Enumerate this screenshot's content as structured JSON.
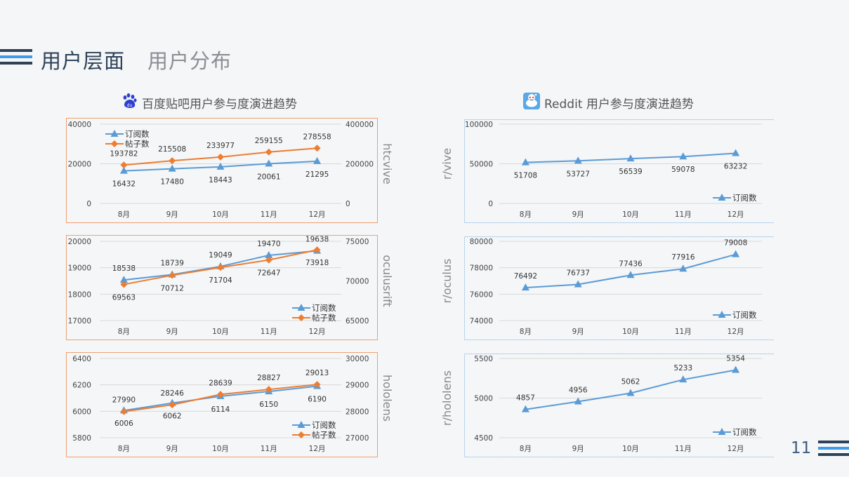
{
  "header": {
    "title": "用户层面",
    "subtitle": "用户分布"
  },
  "page_number": "11",
  "sections": {
    "baidu": {
      "title": "百度贴吧用户参与度演进趋势",
      "icon": "baidu-paw-icon"
    },
    "reddit": {
      "title": "Reddit 用户参与度演进趋势",
      "icon": "reddit-alien-icon"
    }
  },
  "colors": {
    "subs": "#5b9bd5",
    "posts": "#ed7d31",
    "baidu_border": "#f0a070",
    "reddit_border": "#9dc3e6"
  },
  "chart_data": [
    {
      "type": "line",
      "name": "htcvive",
      "side_label": "htcvive",
      "border": "orange",
      "categories": [
        "8月",
        "9月",
        "10月",
        "11月",
        "12月"
      ],
      "ylim": [
        0,
        40000
      ],
      "yticks": [
        0,
        20000,
        40000
      ],
      "y2lim": [
        0,
        400000
      ],
      "y2ticks": [
        0,
        200000,
        400000
      ],
      "legend": "top-left",
      "series": [
        {
          "name": "订阅数",
          "marker": "triangle",
          "color": "#5b9bd5",
          "axis": "left",
          "values": [
            16432,
            17480,
            18443,
            20061,
            21295
          ],
          "labels": [
            "16432",
            "17480",
            "18443",
            "20061",
            "21295"
          ],
          "label_pos": "below"
        },
        {
          "name": "帖子数",
          "marker": "diamond",
          "color": "#ed7d31",
          "axis": "right",
          "values": [
            193782,
            215508,
            233977,
            259155,
            278558
          ],
          "labels": [
            "193782",
            "215508",
            "233977",
            "259155",
            "278558"
          ],
          "label_pos": "above"
        }
      ]
    },
    {
      "type": "line",
      "name": "oculusrift",
      "side_label": "oculusrift",
      "border": "orange",
      "categories": [
        "8月",
        "9月",
        "10月",
        "11月",
        "12月"
      ],
      "ylim": [
        17000,
        20000
      ],
      "yticks": [
        17000,
        18000,
        19000,
        20000
      ],
      "y2lim": [
        65000,
        75000
      ],
      "y2ticks": [
        65000,
        70000,
        75000
      ],
      "legend": "bottom-right",
      "series": [
        {
          "name": "订阅数",
          "marker": "triangle",
          "color": "#5b9bd5",
          "axis": "left",
          "values": [
            18538,
            18739,
            19049,
            19470,
            19638
          ],
          "labels": [
            "18538",
            "18739",
            "19049",
            "19470",
            "19638"
          ],
          "label_pos": "above"
        },
        {
          "name": "帖子数",
          "marker": "diamond",
          "color": "#ed7d31",
          "axis": "right",
          "values": [
            69563,
            70712,
            71704,
            72647,
            73918
          ],
          "labels": [
            "69563",
            "70712",
            "71704",
            "72647",
            "73918"
          ],
          "label_pos": "below"
        }
      ]
    },
    {
      "type": "line",
      "name": "hololens",
      "side_label": "hololens",
      "border": "orange",
      "categories": [
        "8月",
        "9月",
        "10月",
        "11月",
        "12月"
      ],
      "ylim": [
        5800,
        6400
      ],
      "yticks": [
        5800,
        6000,
        6200,
        6400
      ],
      "y2lim": [
        27000,
        30000
      ],
      "y2ticks": [
        27000,
        28000,
        29000,
        30000
      ],
      "legend": "bottom-right",
      "series": [
        {
          "name": "订阅数",
          "marker": "triangle",
          "color": "#5b9bd5",
          "axis": "left",
          "values": [
            6006,
            6062,
            6114,
            6150,
            6190
          ],
          "labels": [
            "6006",
            "6062",
            "6114",
            "6150",
            "6190"
          ],
          "label_pos": "below"
        },
        {
          "name": "帖子数",
          "marker": "diamond",
          "color": "#ed7d31",
          "axis": "right",
          "values": [
            27990,
            28246,
            28639,
            28827,
            29013
          ],
          "labels": [
            "27990",
            "28246",
            "28639",
            "28827",
            "29013"
          ],
          "label_pos": "above"
        }
      ]
    },
    {
      "type": "line",
      "name": "r/vive",
      "side_label": "r/vive",
      "border": "blue",
      "categories": [
        "8月",
        "9月",
        "10月",
        "11月",
        "12月"
      ],
      "ylim": [
        0,
        100000
      ],
      "yticks": [
        0,
        50000,
        100000
      ],
      "legend": "bottom-right",
      "series": [
        {
          "name": "订阅数",
          "marker": "triangle",
          "color": "#5b9bd5",
          "axis": "left",
          "values": [
            51708,
            53727,
            56539,
            59078,
            63232
          ],
          "labels": [
            "51708",
            "53727",
            "56539",
            "59078",
            "63232"
          ],
          "label_pos": "below"
        }
      ]
    },
    {
      "type": "line",
      "name": "r/oculus",
      "side_label": "r/oculus",
      "border": "blue",
      "categories": [
        "8月",
        "9月",
        "10月",
        "11月",
        "12月"
      ],
      "ylim": [
        74000,
        80000
      ],
      "yticks": [
        74000,
        76000,
        78000,
        80000
      ],
      "legend": "bottom-right",
      "series": [
        {
          "name": "订阅数",
          "marker": "triangle",
          "color": "#5b9bd5",
          "axis": "left",
          "values": [
            76492,
            76737,
            77436,
            77916,
            79008
          ],
          "labels": [
            "76492",
            "76737",
            "77436",
            "77916",
            "79008"
          ],
          "label_pos": "above"
        }
      ]
    },
    {
      "type": "line",
      "name": "r/hololens",
      "side_label": "r/hololens",
      "border": "blue",
      "categories": [
        "8月",
        "9月",
        "10月",
        "11月",
        "12月"
      ],
      "ylim": [
        4500,
        5500
      ],
      "yticks": [
        4500,
        5000,
        5500
      ],
      "legend": "bottom-right",
      "series": [
        {
          "name": "订阅数",
          "marker": "triangle",
          "color": "#5b9bd5",
          "axis": "left",
          "values": [
            4857,
            4956,
            5062,
            5233,
            5354
          ],
          "labels": [
            "4857",
            "4956",
            "5062",
            "5233",
            "5354"
          ],
          "label_pos": "above"
        }
      ]
    }
  ]
}
